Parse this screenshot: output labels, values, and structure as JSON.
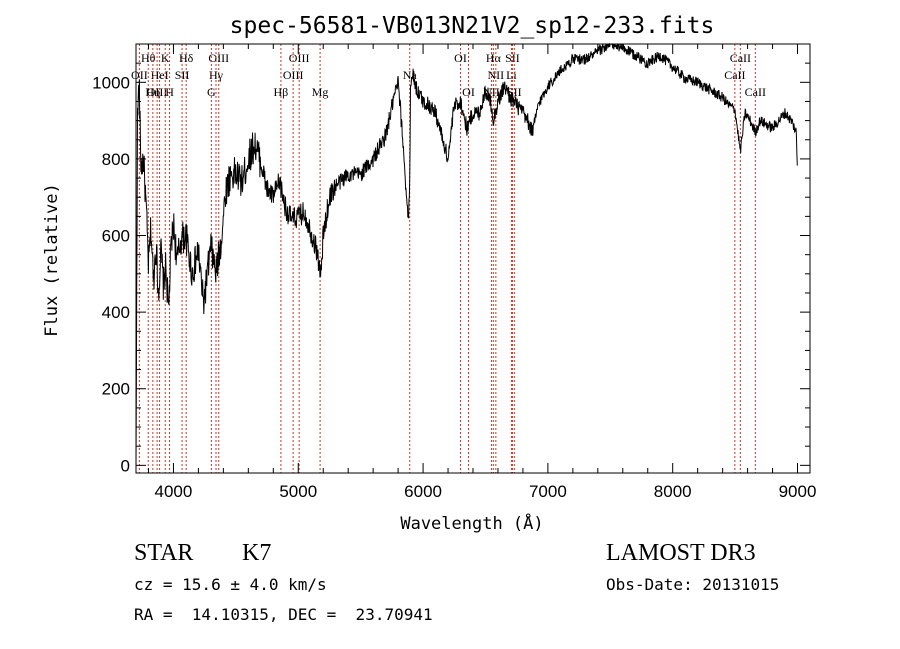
{
  "chart_data": {
    "type": "line",
    "title": "spec-56581-VB013N21V2_sp12-233.fits",
    "xlabel": "Wavelength (Å)",
    "ylabel": "Flux (relative)",
    "xlim": [
      3700,
      9100
    ],
    "ylim": [
      -20,
      1100
    ],
    "x_ticks": [
      4000,
      5000,
      6000,
      7000,
      8000,
      9000
    ],
    "y_ticks": [
      0,
      200,
      400,
      600,
      800,
      1000
    ],
    "grid": false,
    "series": [
      {
        "x": [
          3700,
          3712,
          3725,
          3740,
          3760,
          3780,
          3800,
          3820,
          3840,
          3860,
          3880,
          3900,
          3920,
          3940,
          3960,
          3980,
          4000,
          4030,
          4060,
          4100,
          4150,
          4200,
          4240,
          4280,
          4300,
          4340,
          4380,
          4420,
          4460,
          4500,
          4550,
          4600,
          4650,
          4700,
          4750,
          4800,
          4850,
          4900,
          4950,
          5000,
          5050,
          5100,
          5150,
          5180,
          5200,
          5250,
          5300,
          5400,
          5500,
          5600,
          5700,
          5760,
          5800,
          5840,
          5880,
          5892,
          5900,
          5920,
          5950,
          6000,
          6050,
          6100,
          6150,
          6200,
          6250,
          6300,
          6350,
          6400,
          6450,
          6500,
          6550,
          6563,
          6600,
          6650,
          6700,
          6750,
          6800,
          6850,
          6880,
          6920,
          7000,
          7100,
          7200,
          7300,
          7400,
          7500,
          7600,
          7700,
          7800,
          7900,
          8000,
          8100,
          8200,
          8300,
          8400,
          8450,
          8498,
          8542,
          8580,
          8620,
          8662,
          8700,
          8750,
          8800,
          8850,
          8900,
          8950,
          8990,
          9000
        ],
        "y": [
          0,
          900,
          1000,
          780,
          800,
          680,
          520,
          620,
          480,
          580,
          450,
          560,
          470,
          520,
          400,
          560,
          630,
          530,
          590,
          600,
          500,
          560,
          420,
          520,
          570,
          500,
          580,
          720,
          760,
          760,
          740,
          800,
          840,
          790,
          720,
          700,
          740,
          670,
          640,
          650,
          660,
          610,
          560,
          490,
          600,
          700,
          730,
          760,
          760,
          800,
          860,
          950,
          1000,
          840,
          640,
          700,
          1010,
          1020,
          980,
          950,
          940,
          920,
          860,
          800,
          940,
          950,
          880,
          920,
          920,
          980,
          940,
          900,
          950,
          990,
          960,
          940,
          920,
          890,
          870,
          940,
          990,
          1030,
          1060,
          1060,
          1080,
          1100,
          1090,
          1070,
          1050,
          1070,
          1040,
          1010,
          1000,
          980,
          960,
          940,
          930,
          820,
          920,
          900,
          870,
          900,
          890,
          880,
          900,
          920,
          900,
          870,
          760
        ]
      }
    ],
    "line_markers": [
      {
        "label": "Hθ",
        "wl": 3798,
        "row": 0
      },
      {
        "label": "OII",
        "wl": 3727,
        "row": 1
      },
      {
        "label": "OIII",
        "wl": 3869,
        "row": 2
      },
      {
        "label": "K",
        "wl": 3934,
        "row": 0
      },
      {
        "label": "HeI",
        "wl": 3889,
        "row": 1
      },
      {
        "label": "Hη",
        "wl": 3835,
        "row": 2
      },
      {
        "label": "H",
        "wl": 3969,
        "row": 2
      },
      {
        "label": "Hδ",
        "wl": 4102,
        "row": 0
      },
      {
        "label": "SII",
        "wl": 4069,
        "row": 1
      },
      {
        "label": "OIII",
        "wl": 4363,
        "row": 0
      },
      {
        "label": "Hγ",
        "wl": 4341,
        "row": 1
      },
      {
        "label": "G",
        "wl": 4304,
        "row": 2
      },
      {
        "label": "Hβ",
        "wl": 4861,
        "row": 2
      },
      {
        "label": "OIII",
        "wl": 5007,
        "row": 0
      },
      {
        "label": "OIII",
        "wl": 4959,
        "row": 1
      },
      {
        "label": "Mg",
        "wl": 5175,
        "row": 2
      },
      {
        "label": "Na",
        "wl": 5893,
        "row": 1
      },
      {
        "label": "OI",
        "wl": 6300,
        "row": 0
      },
      {
        "label": "OI",
        "wl": 6364,
        "row": 2
      },
      {
        "label": "Hα",
        "wl": 6563,
        "row": 0
      },
      {
        "label": "NII",
        "wl": 6583,
        "row": 1
      },
      {
        "label": "NII",
        "wl": 6548,
        "row": 2
      },
      {
        "label": "SII",
        "wl": 6716,
        "row": 0
      },
      {
        "label": "Li",
        "wl": 6708,
        "row": 1
      },
      {
        "label": "SII",
        "wl": 6731,
        "row": 2
      },
      {
        "label": "CaII",
        "wl": 8542,
        "row": 0
      },
      {
        "label": "CaII",
        "wl": 8498,
        "row": 1
      },
      {
        "label": "CaII",
        "wl": 8662,
        "row": 2
      }
    ],
    "line_marker_color": "#c0392b"
  },
  "info": {
    "class": "STAR",
    "subclass": "K7",
    "survey": "LAMOST DR3",
    "cz": "cz = 15.6 ± 4.0 km/s",
    "obs_date": "Obs-Date: 20131015",
    "coords": "RA =  14.10315, DEC =  23.70941"
  }
}
